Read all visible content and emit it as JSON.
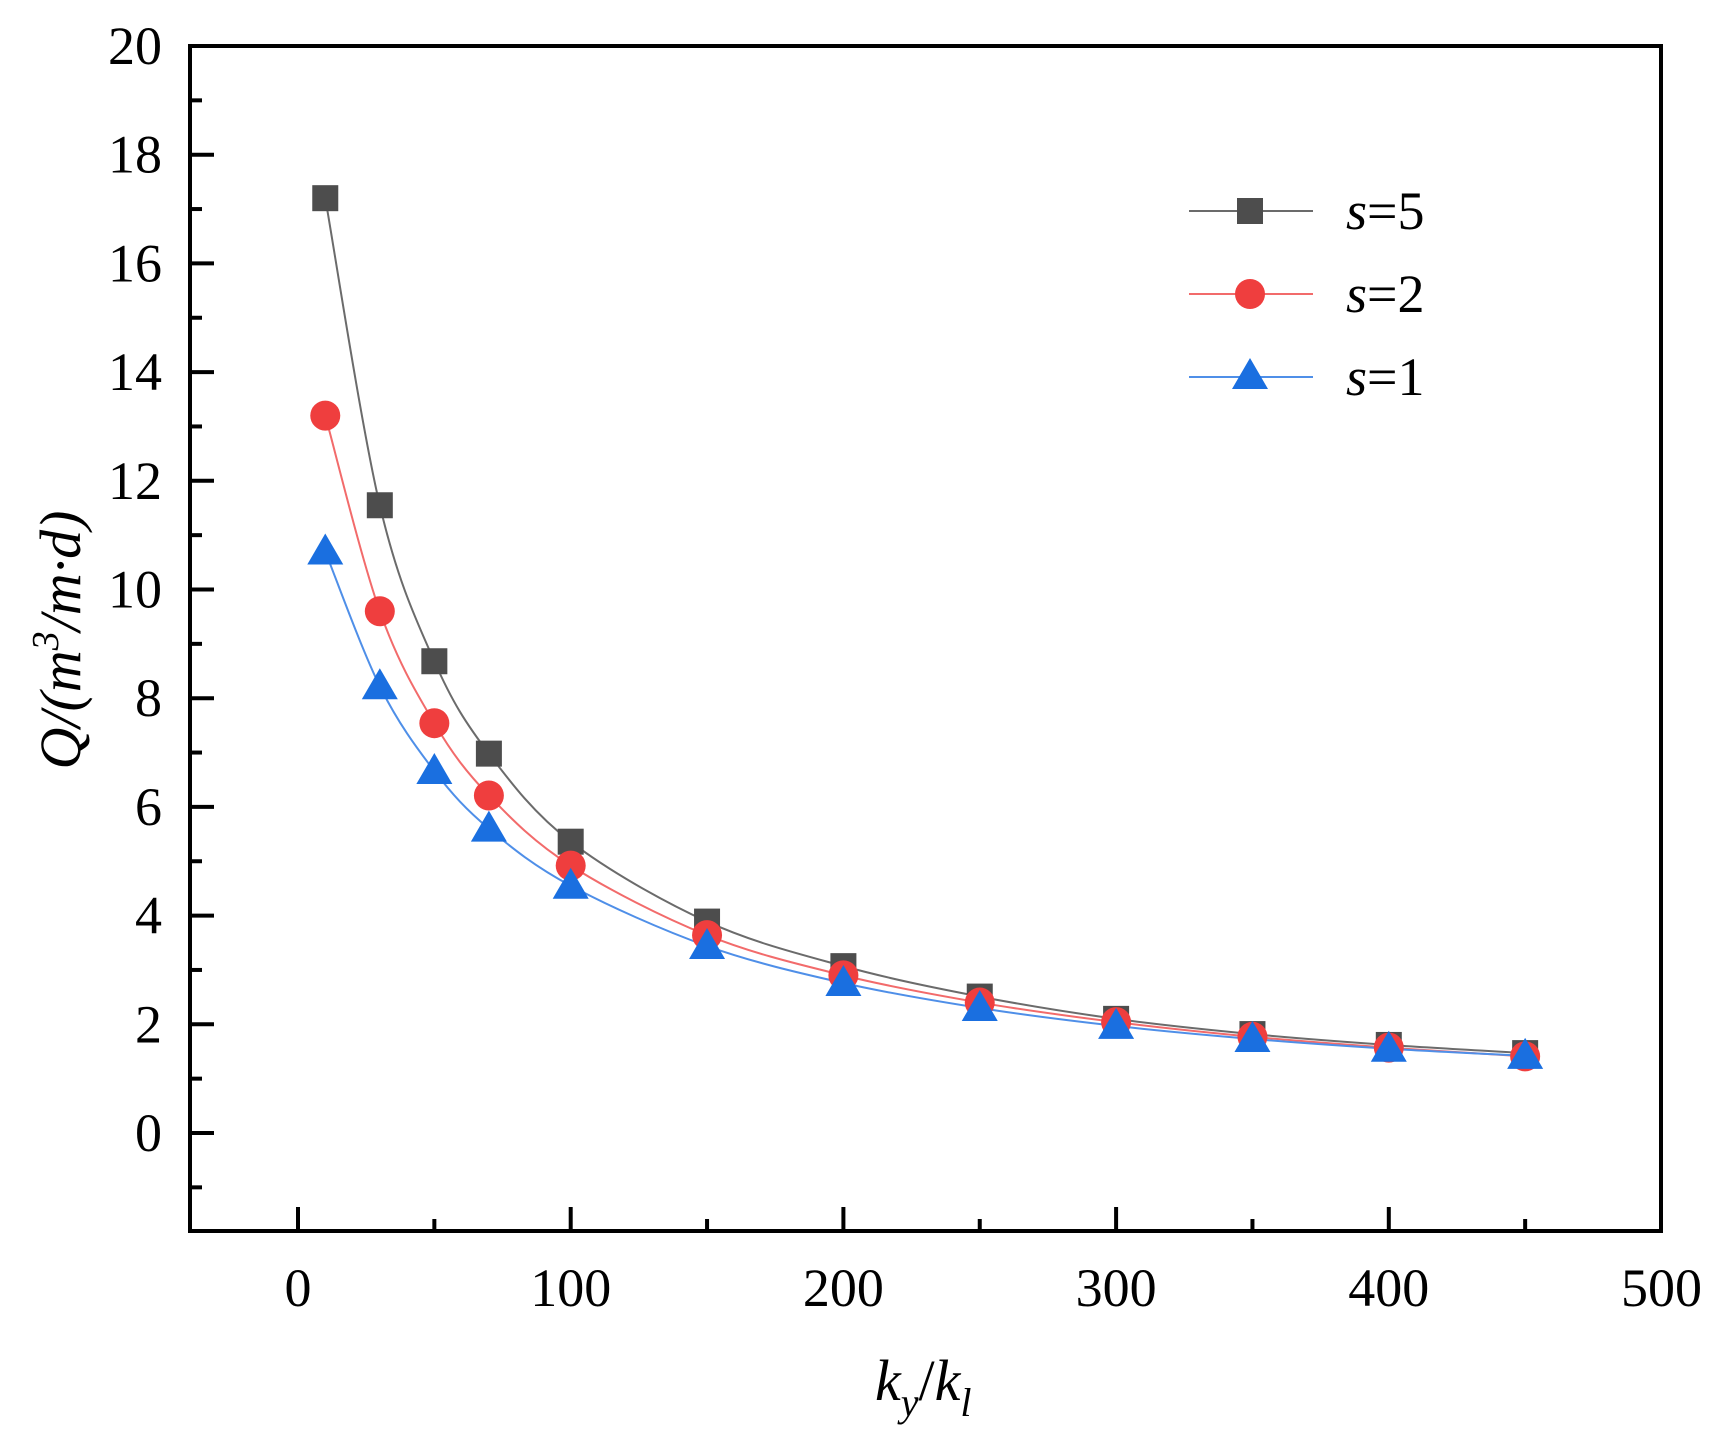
{
  "chart_data": {
    "type": "line",
    "title": "",
    "xlabel": "k_y/k_l",
    "ylabel": "Q/(m^3/m·d)",
    "xlim": [
      -40,
      500
    ],
    "ylim": [
      -1.8,
      20
    ],
    "xticks": [
      0,
      100,
      200,
      300,
      400,
      500
    ],
    "yticks": [
      0,
      2,
      4,
      6,
      8,
      10,
      12,
      14,
      16,
      18,
      20
    ],
    "grid": false,
    "legend_position": "upper right",
    "x": [
      10,
      30,
      50,
      70,
      100,
      150,
      200,
      250,
      300,
      350,
      400,
      450
    ],
    "series": [
      {
        "name": "s=5",
        "marker": "square",
        "color": "#4d4d4d",
        "line_color": "#6b6b6b",
        "values": [
          17.2,
          11.55,
          8.68,
          6.98,
          5.36,
          3.89,
          3.07,
          2.51,
          2.1,
          1.82,
          1.62,
          1.47
        ]
      },
      {
        "name": "s=2",
        "marker": "circle",
        "color": "#ef3e3e",
        "line_color": "#f26b6b",
        "values": [
          13.2,
          9.6,
          7.54,
          6.21,
          4.92,
          3.64,
          2.9,
          2.4,
          2.04,
          1.77,
          1.57,
          1.41
        ]
      },
      {
        "name": "s=1",
        "marker": "triangle",
        "color": "#1a6fe0",
        "line_color": "#4f8fe8",
        "values": [
          10.7,
          8.22,
          6.66,
          5.6,
          4.55,
          3.44,
          2.76,
          2.3,
          1.97,
          1.73,
          1.55,
          1.42
        ]
      }
    ]
  },
  "axes": {
    "x_title_main": "k",
    "x_title_sub1": "y",
    "x_title_slash": "/",
    "x_title_sub2": "l",
    "y_title_pre": "Q/(m",
    "y_title_sup": "3",
    "y_title_post": "/m·d)"
  },
  "legend": {
    "items": [
      {
        "var": "s",
        "rest": "=5"
      },
      {
        "var": "s",
        "rest": "=2"
      },
      {
        "var": "s",
        "rest": "=1"
      }
    ]
  }
}
